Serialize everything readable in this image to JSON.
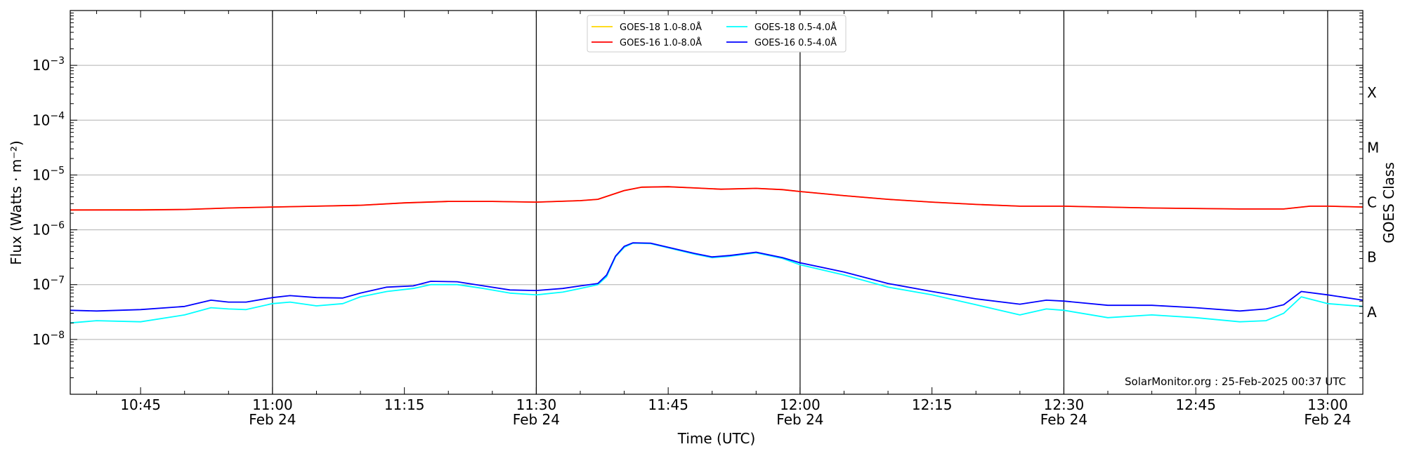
{
  "chart_data": {
    "type": "line",
    "title": "",
    "xlabel": "Time (UTC)",
    "ylabel": "Flux (Watts · m⁻²)",
    "right_ylabel": "GOES Class",
    "y_scale": "log",
    "ylim": [
      1e-09,
      0.01
    ],
    "xlim": [
      "10:37",
      "13:04"
    ],
    "grid": "horizontal at decades",
    "vertical_lines": [
      "11:00",
      "11:30",
      "12:00",
      "12:30",
      "13:00"
    ],
    "x_ticks": [
      {
        "t": "10:45",
        "label": "10:45",
        "sub": ""
      },
      {
        "t": "11:00",
        "label": "11:00",
        "sub": "Feb 24"
      },
      {
        "t": "11:15",
        "label": "11:15",
        "sub": ""
      },
      {
        "t": "11:30",
        "label": "11:30",
        "sub": "Feb 24"
      },
      {
        "t": "11:45",
        "label": "11:45",
        "sub": ""
      },
      {
        "t": "12:00",
        "label": "12:00",
        "sub": "Feb 24"
      },
      {
        "t": "12:15",
        "label": "12:15",
        "sub": ""
      },
      {
        "t": "12:30",
        "label": "12:30",
        "sub": "Feb 24"
      },
      {
        "t": "12:45",
        "label": "12:45",
        "sub": ""
      },
      {
        "t": "13:00",
        "label": "13:00",
        "sub": "Feb 24"
      }
    ],
    "y_ticks": [
      {
        "value": 1e-08,
        "base": "10",
        "exp": "−8"
      },
      {
        "value": 1e-07,
        "base": "10",
        "exp": "−7"
      },
      {
        "value": 1e-06,
        "base": "10",
        "exp": "−6"
      },
      {
        "value": 1e-05,
        "base": "10",
        "exp": "−5"
      },
      {
        "value": 0.0001,
        "base": "10",
        "exp": "−4"
      },
      {
        "value": 0.001,
        "base": "10",
        "exp": "−3"
      }
    ],
    "goes_classes": [
      {
        "label": "A",
        "value": 3.16e-08
      },
      {
        "label": "B",
        "value": 3.16e-07
      },
      {
        "label": "C",
        "value": 3.16e-06
      },
      {
        "label": "M",
        "value": 3.16e-05
      },
      {
        "label": "X",
        "value": 0.000316
      }
    ],
    "legend": {
      "placement": "top-center",
      "entries": [
        {
          "name": "GOES-18 1.0-8.0Å",
          "color": "#ffd700"
        },
        {
          "name": "GOES-18 0.5-4.0Å",
          "color": "#00ffff"
        },
        {
          "name": "GOES-16 1.0-8.0Å",
          "color": "#ff0000"
        },
        {
          "name": "GOES-16 0.5-4.0Å",
          "color": "#0000ff"
        }
      ]
    },
    "annotation": "SolarMonitor.org : 25-Feb-2025 00:37 UTC",
    "series": [
      {
        "name": "GOES-18 1.0-8.0Å",
        "color": "#ffd700",
        "points": [
          [
            "10:37",
            2.3e-06
          ],
          [
            "10:50",
            2.35e-06
          ],
          [
            "10:55",
            2.5e-06
          ],
          [
            "11:00",
            2.6e-06
          ],
          [
            "11:05",
            2.7e-06
          ],
          [
            "11:10",
            2.8e-06
          ],
          [
            "11:15",
            3.1e-06
          ],
          [
            "11:20",
            3.3e-06
          ],
          [
            "11:25",
            3.3e-06
          ],
          [
            "11:30",
            3.2e-06
          ],
          [
            "11:35",
            3.4e-06
          ],
          [
            "11:37",
            3.6e-06
          ],
          [
            "11:40",
            5.2e-06
          ],
          [
            "11:42",
            6e-06
          ],
          [
            "11:45",
            6.1e-06
          ],
          [
            "11:48",
            5.8e-06
          ],
          [
            "11:51",
            5.5e-06
          ],
          [
            "11:55",
            5.7e-06
          ],
          [
            "11:58",
            5.4e-06
          ],
          [
            "12:00",
            5e-06
          ],
          [
            "12:05",
            4.2e-06
          ],
          [
            "12:10",
            3.6e-06
          ],
          [
            "12:15",
            3.2e-06
          ],
          [
            "12:20",
            2.9e-06
          ],
          [
            "12:25",
            2.7e-06
          ],
          [
            "12:30",
            2.7e-06
          ],
          [
            "12:40",
            2.5e-06
          ],
          [
            "12:50",
            2.4e-06
          ],
          [
            "12:55",
            2.4e-06
          ],
          [
            "12:58",
            2.7e-06
          ],
          [
            "13:00",
            2.7e-06
          ],
          [
            "13:04",
            2.6e-06
          ]
        ]
      },
      {
        "name": "GOES-16 1.0-8.0Å",
        "color": "#ff0000",
        "points": [
          [
            "10:37",
            2.3e-06
          ],
          [
            "10:45",
            2.3e-06
          ],
          [
            "10:50",
            2.35e-06
          ],
          [
            "10:55",
            2.5e-06
          ],
          [
            "11:00",
            2.6e-06
          ],
          [
            "11:05",
            2.7e-06
          ],
          [
            "11:10",
            2.8e-06
          ],
          [
            "11:15",
            3.1e-06
          ],
          [
            "11:20",
            3.3e-06
          ],
          [
            "11:25",
            3.3e-06
          ],
          [
            "11:30",
            3.2e-06
          ],
          [
            "11:35",
            3.4e-06
          ],
          [
            "11:37",
            3.6e-06
          ],
          [
            "11:40",
            5.2e-06
          ],
          [
            "11:42",
            6e-06
          ],
          [
            "11:45",
            6.1e-06
          ],
          [
            "11:48",
            5.8e-06
          ],
          [
            "11:51",
            5.5e-06
          ],
          [
            "11:55",
            5.7e-06
          ],
          [
            "11:58",
            5.4e-06
          ],
          [
            "12:00",
            5e-06
          ],
          [
            "12:05",
            4.2e-06
          ],
          [
            "12:10",
            3.6e-06
          ],
          [
            "12:15",
            3.2e-06
          ],
          [
            "12:20",
            2.9e-06
          ],
          [
            "12:25",
            2.7e-06
          ],
          [
            "12:30",
            2.7e-06
          ],
          [
            "12:40",
            2.5e-06
          ],
          [
            "12:50",
            2.4e-06
          ],
          [
            "12:55",
            2.4e-06
          ],
          [
            "12:58",
            2.7e-06
          ],
          [
            "13:00",
            2.7e-06
          ],
          [
            "13:04",
            2.6e-06
          ]
        ]
      },
      {
        "name": "GOES-18 0.5-4.0Å",
        "color": "#00ffff",
        "points": [
          [
            "10:37",
            2e-08
          ],
          [
            "10:40",
            2.2e-08
          ],
          [
            "10:45",
            2.1e-08
          ],
          [
            "10:50",
            2.8e-08
          ],
          [
            "10:53",
            3.8e-08
          ],
          [
            "10:55",
            3.6e-08
          ],
          [
            "10:57",
            3.5e-08
          ],
          [
            "11:00",
            4.5e-08
          ],
          [
            "11:02",
            4.8e-08
          ],
          [
            "11:05",
            4.1e-08
          ],
          [
            "11:08",
            4.5e-08
          ],
          [
            "11:10",
            6e-08
          ],
          [
            "11:13",
            7.5e-08
          ],
          [
            "11:16",
            8.5e-08
          ],
          [
            "11:18",
            1e-07
          ],
          [
            "11:21",
            1e-07
          ],
          [
            "11:24",
            8.5e-08
          ],
          [
            "11:27",
            7e-08
          ],
          [
            "11:30",
            6.5e-08
          ],
          [
            "11:33",
            7.3e-08
          ],
          [
            "11:35",
            8.5e-08
          ],
          [
            "11:37",
            1e-07
          ],
          [
            "11:38",
            1.4e-07
          ],
          [
            "11:39",
            3.2e-07
          ],
          [
            "11:40",
            4.8e-07
          ],
          [
            "11:41",
            5.7e-07
          ],
          [
            "11:43",
            5.6e-07
          ],
          [
            "11:45",
            4.7e-07
          ],
          [
            "11:48",
            3.6e-07
          ],
          [
            "11:50",
            3.1e-07
          ],
          [
            "11:52",
            3.3e-07
          ],
          [
            "11:55",
            3.8e-07
          ],
          [
            "11:58",
            3e-07
          ],
          [
            "12:00",
            2.3e-07
          ],
          [
            "12:05",
            1.5e-07
          ],
          [
            "12:10",
            9e-08
          ],
          [
            "12:15",
            6.5e-08
          ],
          [
            "12:20",
            4.3e-08
          ],
          [
            "12:25",
            2.8e-08
          ],
          [
            "12:28",
            3.6e-08
          ],
          [
            "12:30",
            3.4e-08
          ],
          [
            "12:35",
            2.5e-08
          ],
          [
            "12:40",
            2.8e-08
          ],
          [
            "12:45",
            2.5e-08
          ],
          [
            "12:50",
            2.1e-08
          ],
          [
            "12:53",
            2.2e-08
          ],
          [
            "12:55",
            3e-08
          ],
          [
            "12:57",
            6e-08
          ],
          [
            "13:00",
            4.5e-08
          ],
          [
            "13:04",
            4e-08
          ]
        ]
      },
      {
        "name": "GOES-16 0.5-4.0Å",
        "color": "#0000ff",
        "points": [
          [
            "10:37",
            3.4e-08
          ],
          [
            "10:40",
            3.3e-08
          ],
          [
            "10:45",
            3.5e-08
          ],
          [
            "10:50",
            4e-08
          ],
          [
            "10:53",
            5.2e-08
          ],
          [
            "10:55",
            4.8e-08
          ],
          [
            "10:57",
            4.8e-08
          ],
          [
            "11:00",
            5.8e-08
          ],
          [
            "11:02",
            6.3e-08
          ],
          [
            "11:05",
            5.8e-08
          ],
          [
            "11:08",
            5.7e-08
          ],
          [
            "11:10",
            7e-08
          ],
          [
            "11:13",
            9e-08
          ],
          [
            "11:16",
            9.5e-08
          ],
          [
            "11:18",
            1.15e-07
          ],
          [
            "11:21",
            1.13e-07
          ],
          [
            "11:24",
            9.5e-08
          ],
          [
            "11:27",
            8e-08
          ],
          [
            "11:30",
            7.8e-08
          ],
          [
            "11:33",
            8.5e-08
          ],
          [
            "11:35",
            9.5e-08
          ],
          [
            "11:37",
            1.05e-07
          ],
          [
            "11:38",
            1.5e-07
          ],
          [
            "11:39",
            3.3e-07
          ],
          [
            "11:40",
            5e-07
          ],
          [
            "11:41",
            5.8e-07
          ],
          [
            "11:43",
            5.7e-07
          ],
          [
            "11:45",
            4.8e-07
          ],
          [
            "11:48",
            3.7e-07
          ],
          [
            "11:50",
            3.2e-07
          ],
          [
            "11:52",
            3.4e-07
          ],
          [
            "11:55",
            3.9e-07
          ],
          [
            "11:58",
            3.1e-07
          ],
          [
            "12:00",
            2.5e-07
          ],
          [
            "12:05",
            1.7e-07
          ],
          [
            "12:10",
            1.05e-07
          ],
          [
            "12:15",
            7.5e-08
          ],
          [
            "12:20",
            5.5e-08
          ],
          [
            "12:25",
            4.4e-08
          ],
          [
            "12:28",
            5.2e-08
          ],
          [
            "12:30",
            5e-08
          ],
          [
            "12:35",
            4.2e-08
          ],
          [
            "12:40",
            4.2e-08
          ],
          [
            "12:45",
            3.8e-08
          ],
          [
            "12:50",
            3.3e-08
          ],
          [
            "12:53",
            3.6e-08
          ],
          [
            "12:55",
            4.3e-08
          ],
          [
            "12:57",
            7.5e-08
          ],
          [
            "13:00",
            6.5e-08
          ],
          [
            "13:04",
            5.2e-08
          ]
        ]
      }
    ]
  }
}
